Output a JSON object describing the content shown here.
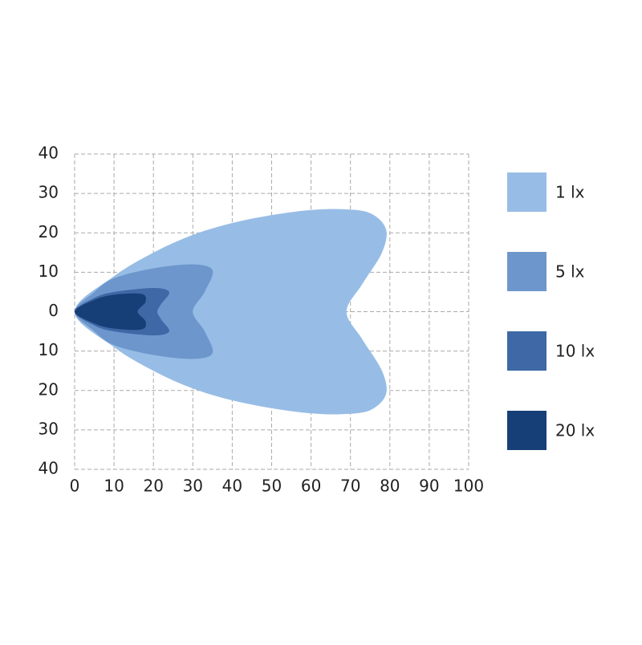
{
  "chart_data": {
    "type": "isolux",
    "xlim": [
      0,
      100
    ],
    "xticks": [
      0,
      10,
      20,
      30,
      40,
      50,
      60,
      70,
      80,
      90,
      100
    ],
    "ylim": [
      -40,
      40
    ],
    "yticks": [
      {
        "value": -40,
        "label": "40"
      },
      {
        "value": -30,
        "label": "30"
      },
      {
        "value": -20,
        "label": "20"
      },
      {
        "value": -10,
        "label": "10"
      },
      0,
      10,
      20,
      30,
      40
    ],
    "grid": true,
    "legend": "right",
    "series": [
      {
        "name": "1 lx",
        "color": "#97bde6",
        "x": [
          0,
          10,
          20,
          30,
          40,
          50,
          60,
          68,
          75,
          79,
          78,
          73,
          69,
          73,
          78,
          79,
          75,
          68,
          60,
          50,
          40,
          30,
          20,
          10
        ],
        "y": [
          0,
          9,
          15,
          19.5,
          22.5,
          24.5,
          25.8,
          26,
          25,
          21,
          15,
          7,
          0,
          -7,
          -15,
          -21,
          -25,
          -26,
          -25.8,
          -24.5,
          -22.5,
          -19.5,
          -15,
          -9
        ]
      },
      {
        "name": "5 lx",
        "color": "#6d97cc",
        "x": [
          0,
          5,
          10,
          20,
          30,
          35,
          33,
          30,
          33,
          35,
          30,
          20,
          10,
          5
        ],
        "y": [
          0,
          5,
          8.5,
          11,
          12,
          10.5,
          5,
          0,
          -5,
          -10.5,
          -12,
          -11,
          -8.5,
          -5
        ]
      },
      {
        "name": "10 lx",
        "color": "#3e68a6",
        "x": [
          0,
          5,
          10,
          20,
          24,
          22,
          21,
          22,
          24,
          20,
          10,
          5
        ],
        "y": [
          0,
          3.5,
          5,
          6,
          5,
          2,
          0,
          -2,
          -5,
          -6,
          -5,
          -3.5
        ]
      },
      {
        "name": "20 lx",
        "color": "#173f77",
        "x": [
          0,
          5,
          10,
          17,
          18,
          16,
          18,
          17,
          10,
          5
        ],
        "y": [
          0,
          3,
          4.3,
          4.5,
          2.5,
          0,
          -2.5,
          -4.5,
          -4.3,
          -3
        ]
      }
    ]
  }
}
